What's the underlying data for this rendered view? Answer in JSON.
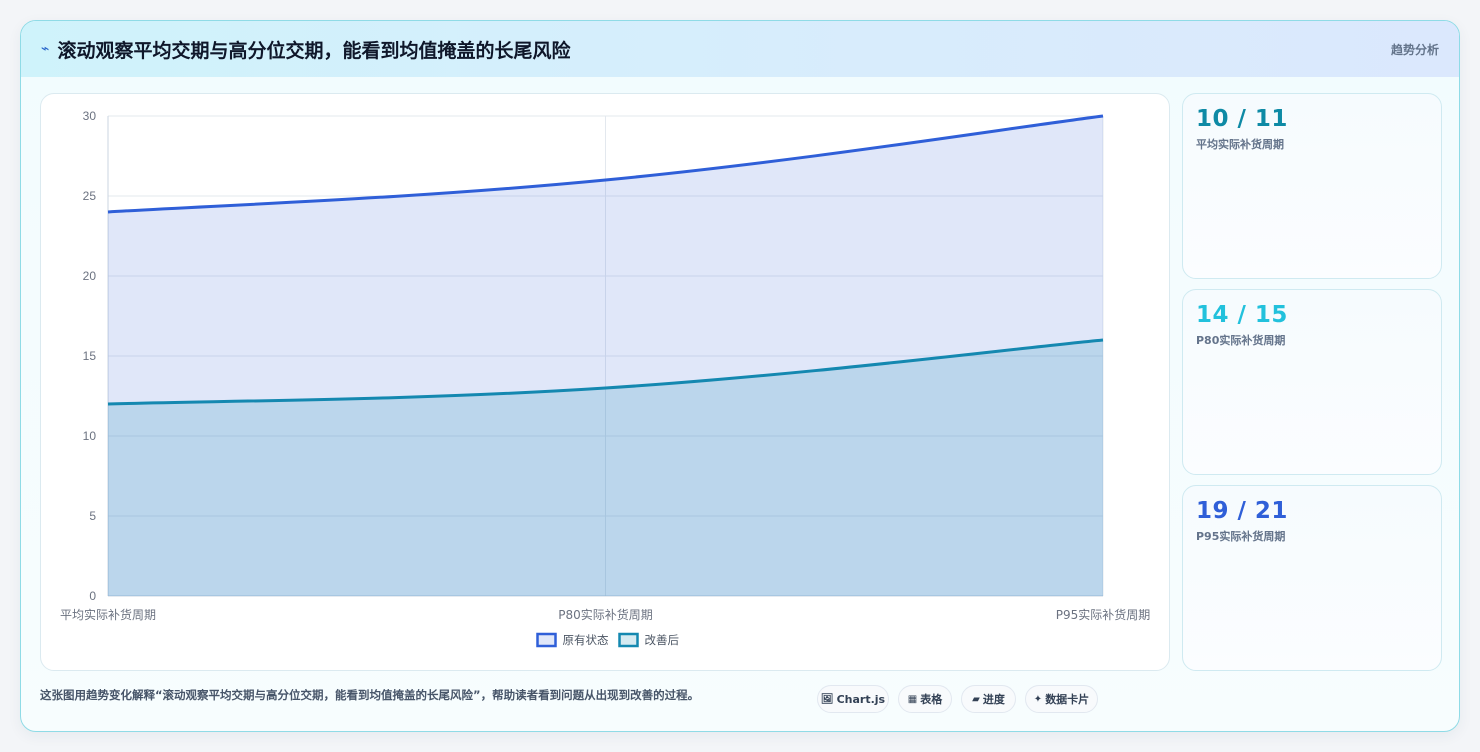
{
  "header": {
    "icon": "sparkle-icon",
    "title": "滚动观察平均交期与高分位交期，能看到均值掩盖的长尾风险",
    "tag": "趋势分析"
  },
  "colors": {
    "original": "#2f5fd8",
    "improved": "#1488b0",
    "accent_cyan": "#22c1dc"
  },
  "chart_data": {
    "type": "area",
    "categories": [
      "平均实际补货周期",
      "P80实际补货周期",
      "P95实际补货周期"
    ],
    "series": [
      {
        "name": "原有状态",
        "values": [
          24,
          26,
          30
        ],
        "color": "#2f5fd8"
      },
      {
        "name": "改善后",
        "values": [
          12,
          13,
          16
        ],
        "color": "#1488b0"
      }
    ],
    "ylim": [
      0,
      30
    ],
    "yticks": [
      0,
      5,
      10,
      15,
      20,
      25,
      30
    ],
    "grid": true,
    "legend_position": "bottom"
  },
  "stats": [
    {
      "value": "10 / 11",
      "label": "平均实际补货周期",
      "color": "#0e8aa5"
    },
    {
      "value": "14 / 15",
      "label": "P80实际补货周期",
      "color": "#22c1dc"
    },
    {
      "value": "19 / 21",
      "label": "P95实际补货周期",
      "color": "#2f5fd8"
    }
  ],
  "footer": {
    "description": "这张图用趋势变化解释“滚动观察平均交期与高分位交期，能看到均值掩盖的长尾风险”，帮助读者看到问题从出现到改善的过程。",
    "chips": [
      {
        "icon": "🖼",
        "label": "Chart.js"
      },
      {
        "icon": "▦",
        "label": "表格"
      },
      {
        "icon": "▰",
        "label": "进度"
      },
      {
        "icon": "✦",
        "label": "数据卡片"
      }
    ]
  }
}
